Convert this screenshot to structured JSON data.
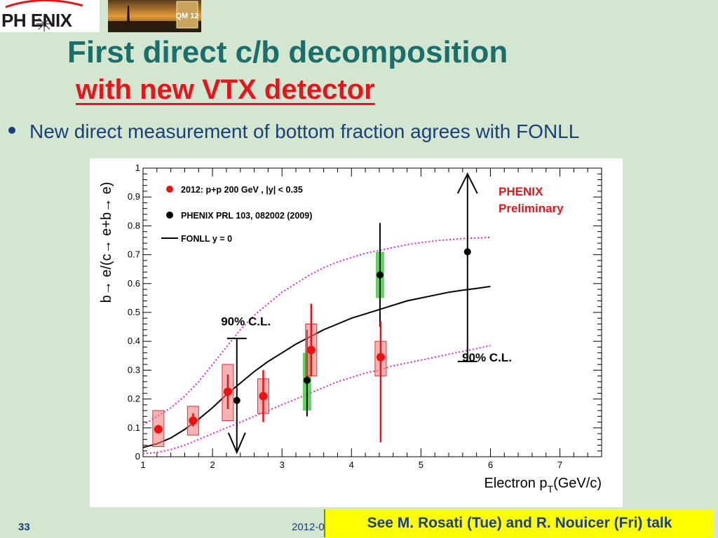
{
  "logo": {
    "text": "PH ENIX"
  },
  "photo": {
    "badge": "QM 12"
  },
  "slide": {
    "title_line1": "First direct c/b decomposition",
    "title_line2": "with new VTX detector",
    "bullet": "New direct measurement of bottom fraction agrees with FONLL",
    "page_number": "33",
    "date": "2012-0",
    "note": "See M. Rosati (Tue) and R. Nouicer (Fri) talk"
  },
  "chart_data": {
    "type": "scatter",
    "xlabel_main": "Electron p",
    "xlabel_sub": "T",
    "xlabel_unit": "(GeV/c)",
    "ylabel": "b→ e/(c→ e+b→ e)",
    "xlim": [
      1,
      7.6
    ],
    "ylim": [
      0,
      1
    ],
    "x_ticks": [
      "1",
      "2",
      "3",
      "4",
      "5",
      "6",
      "7"
    ],
    "y_ticks": [
      "0",
      "0.1",
      "0.2",
      "0.3",
      "0.4",
      "0.5",
      "0.6",
      "0.7",
      "0.8",
      "0.9",
      "1"
    ],
    "preliminary_label_1": "PHENIX",
    "preliminary_label_2": "Preliminary",
    "legend": [
      {
        "name": "2012: p+p 200 GeV  , |y| < 0.35",
        "color": "#ee1111",
        "marker": "circle"
      },
      {
        "name": "PHENIX PRL 103, 082002 (2009)",
        "color": "#000000",
        "marker": "circle"
      },
      {
        "name": "FONLL y = 0",
        "color": "#000000",
        "marker": "line"
      }
    ],
    "series_2012": {
      "name": "2012: p+p 200 GeV  , |y| < 0.35",
      "points": [
        {
          "x": 1.22,
          "y": 0.095,
          "stat": [
            0.085,
            0.11
          ],
          "sys": [
            0.035,
            0.16
          ]
        },
        {
          "x": 1.72,
          "y": 0.125,
          "stat": [
            0.105,
            0.15
          ],
          "sys": [
            0.075,
            0.175
          ]
        },
        {
          "x": 2.22,
          "y": 0.225,
          "stat": [
            0.165,
            0.285
          ],
          "sys": [
            0.125,
            0.32
          ]
        },
        {
          "x": 2.73,
          "y": 0.21,
          "stat": [
            0.12,
            0.3
          ],
          "sys": [
            0.15,
            0.27
          ]
        },
        {
          "x": 3.42,
          "y": 0.37,
          "stat": [
            0.28,
            0.53
          ],
          "sys": [
            0.28,
            0.46
          ]
        },
        {
          "x": 4.42,
          "y": 0.345,
          "stat": [
            0.05,
            0.47
          ],
          "sys": [
            0.28,
            0.4
          ]
        }
      ]
    },
    "series_prl": {
      "name": "PHENIX PRL 103, 082002 (2009)",
      "points": [
        {
          "x": 2.35,
          "y": 0.195,
          "err": [
            0.015,
            0.41
          ],
          "upper_limit": true
        },
        {
          "x": 3.36,
          "y": 0.265,
          "err": [
            0.14,
            0.44
          ],
          "sys": [
            0.16,
            0.36
          ]
        },
        {
          "x": 4.41,
          "y": 0.63,
          "err": [
            0.45,
            0.81
          ],
          "sys": [
            0.55,
            0.71
          ]
        },
        {
          "x": 5.67,
          "y": 0.71,
          "err": [
            0.33,
            0.98
          ],
          "lower_limit": true
        }
      ]
    },
    "fonll": {
      "name": "FONLL y = 0",
      "x": [
        1.0,
        1.2,
        1.4,
        1.6,
        1.8,
        2.0,
        2.2,
        2.4,
        2.6,
        2.8,
        3.0,
        3.2,
        3.4,
        3.6,
        3.8,
        4.0,
        4.2,
        4.4,
        4.6,
        4.8,
        5.0,
        5.2,
        5.4,
        5.6,
        5.8,
        6.0
      ],
      "y": [
        0.032,
        0.045,
        0.065,
        0.095,
        0.13,
        0.17,
        0.215,
        0.255,
        0.295,
        0.33,
        0.36,
        0.39,
        0.415,
        0.44,
        0.46,
        0.48,
        0.495,
        0.51,
        0.525,
        0.54,
        0.55,
        0.56,
        0.57,
        0.577,
        0.583,
        0.59
      ],
      "upper_y": [
        0.11,
        0.14,
        0.17,
        0.21,
        0.26,
        0.32,
        0.38,
        0.44,
        0.49,
        0.53,
        0.57,
        0.6,
        0.63,
        0.655,
        0.675,
        0.69,
        0.705,
        0.715,
        0.725,
        0.735,
        0.742,
        0.748,
        0.752,
        0.756,
        0.758,
        0.76
      ],
      "lower_y": [
        0.01,
        0.015,
        0.025,
        0.04,
        0.06,
        0.08,
        0.1,
        0.12,
        0.14,
        0.16,
        0.18,
        0.2,
        0.22,
        0.24,
        0.26,
        0.275,
        0.29,
        0.3,
        0.315,
        0.325,
        0.335,
        0.345,
        0.355,
        0.365,
        0.375,
        0.385
      ]
    },
    "annotations": [
      {
        "text": "90% C.L.",
        "x": 2.48,
        "y": 0.455
      },
      {
        "text": "90% C.L.",
        "x": 5.95,
        "y": 0.33
      }
    ]
  }
}
